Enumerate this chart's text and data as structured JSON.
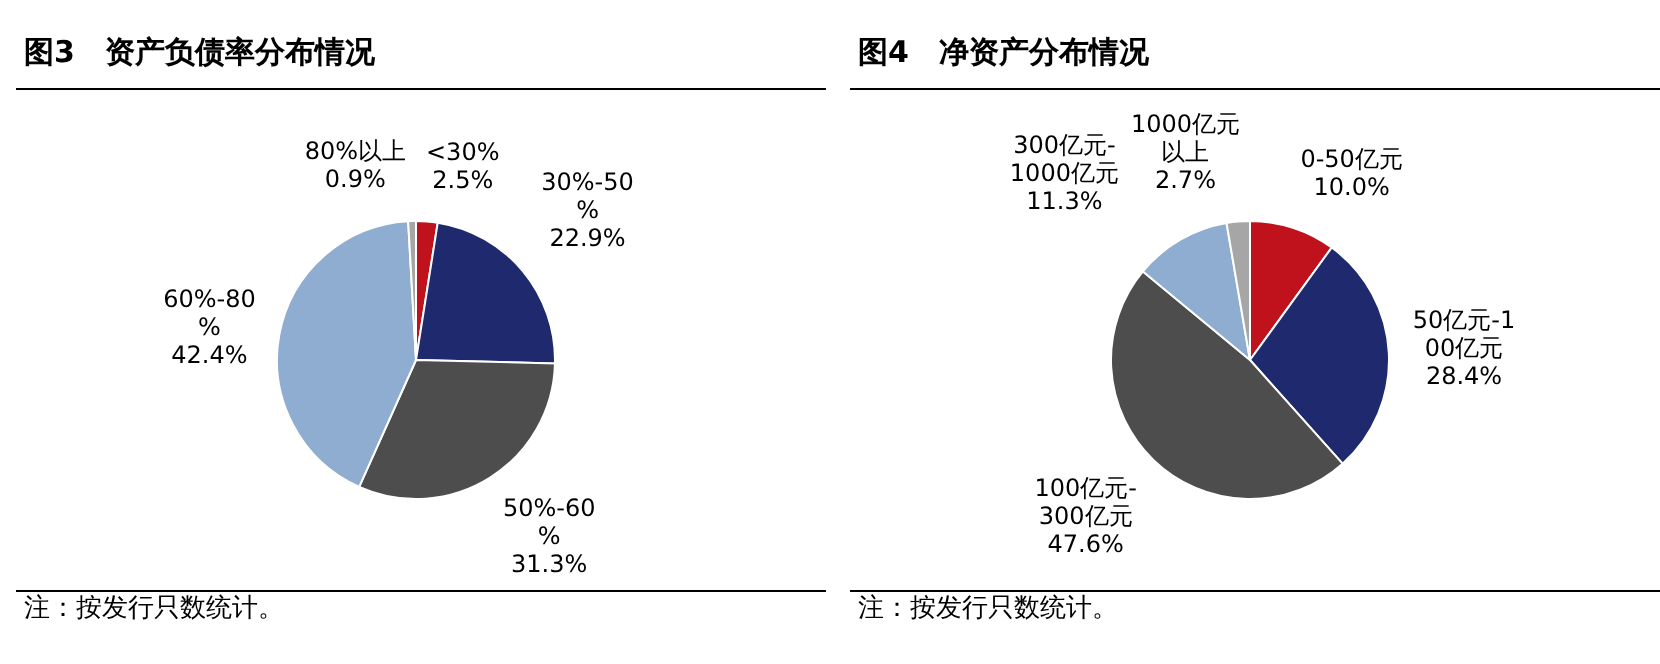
{
  "chart_data": [
    {
      "type": "pie",
      "title": "图3　资产负债率分布情况",
      "categories": [
        "<30%",
        "30%-50%",
        "50%-60%",
        "60%-80%",
        "80%以上"
      ],
      "values": [
        2.5,
        22.9,
        31.3,
        42.4,
        0.9
      ],
      "value_labels": [
        "2.5%",
        "22.9%",
        "31.3%",
        "42.4%",
        "0.9%"
      ],
      "colors": [
        "#c0121c",
        "#1f2a6e",
        "#4d4d4d",
        "#8eadd0",
        "#a6a6a6"
      ],
      "legend": false,
      "annotations": [
        "注：按发行只数统计。"
      ]
    },
    {
      "type": "pie",
      "title": "图4　净资产分布情况",
      "categories": [
        "0-50亿元",
        "50亿元-100亿元",
        "100亿元-300亿元",
        "300亿元-1000亿元",
        "1000亿元以上"
      ],
      "values": [
        10.0,
        28.4,
        47.6,
        11.3,
        2.7
      ],
      "value_labels": [
        "10.0%",
        "28.4%",
        "47.6%",
        "11.3%",
        "2.7%"
      ],
      "colors": [
        "#c0121c",
        "#1f2a6e",
        "#4d4d4d",
        "#8eadd0",
        "#a6a6a6"
      ],
      "legend": false,
      "annotations": [
        "注：按发行只数统计。"
      ]
    }
  ]
}
